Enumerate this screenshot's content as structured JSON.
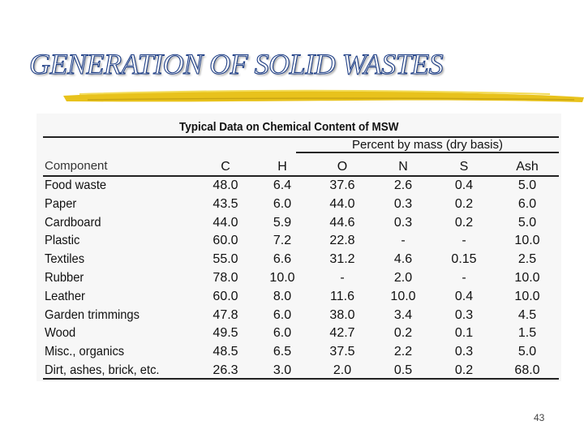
{
  "slide": {
    "title": "GENERATION OF SOLID WASTES",
    "page_number": "43"
  },
  "table": {
    "title": "Typical Data on Chemical Content of MSW",
    "subheader": "Percent by mass (dry basis)",
    "component_header": "Component",
    "columns": [
      "C",
      "H",
      "O",
      "N",
      "S",
      "Ash"
    ],
    "rows": [
      {
        "component": "Food waste",
        "values": [
          "48.0",
          "6.4",
          "37.6",
          "2.6",
          "0.4",
          "5.0"
        ]
      },
      {
        "component": "Paper",
        "values": [
          "43.5",
          "6.0",
          "44.0",
          "0.3",
          "0.2",
          "6.0"
        ]
      },
      {
        "component": "Cardboard",
        "values": [
          "44.0",
          "5.9",
          "44.6",
          "0.3",
          "0.2",
          "5.0"
        ]
      },
      {
        "component": "Plastic",
        "values": [
          "60.0",
          "7.2",
          "22.8",
          "-",
          "-",
          "10.0"
        ]
      },
      {
        "component": "Textiles",
        "values": [
          "55.0",
          "6.6",
          "31.2",
          "4.6",
          "0.15",
          "2.5"
        ]
      },
      {
        "component": "Rubber",
        "values": [
          "78.0",
          "10.0",
          "-",
          "2.0",
          "-",
          "10.0"
        ]
      },
      {
        "component": "Leather",
        "values": [
          "60.0",
          "8.0",
          "11.6",
          "10.0",
          "0.4",
          "10.0"
        ]
      },
      {
        "component": "Garden trimmings",
        "values": [
          "47.8",
          "6.0",
          "38.0",
          "3.4",
          "0.3",
          "4.5"
        ]
      },
      {
        "component": "Wood",
        "values": [
          "49.5",
          "6.0",
          "42.7",
          "0.2",
          "0.1",
          "1.5"
        ]
      },
      {
        "component": "Misc., organics",
        "values": [
          "48.5",
          "6.5",
          "37.5",
          "2.2",
          "0.3",
          "5.0"
        ]
      },
      {
        "component": "Dirt, ashes, brick, etc.",
        "values": [
          "26.3",
          "3.0",
          "2.0",
          "0.5",
          "0.2",
          "68.0"
        ]
      }
    ]
  },
  "colors": {
    "title_outline": "#1f3f86",
    "underline": "#e8c21c"
  }
}
